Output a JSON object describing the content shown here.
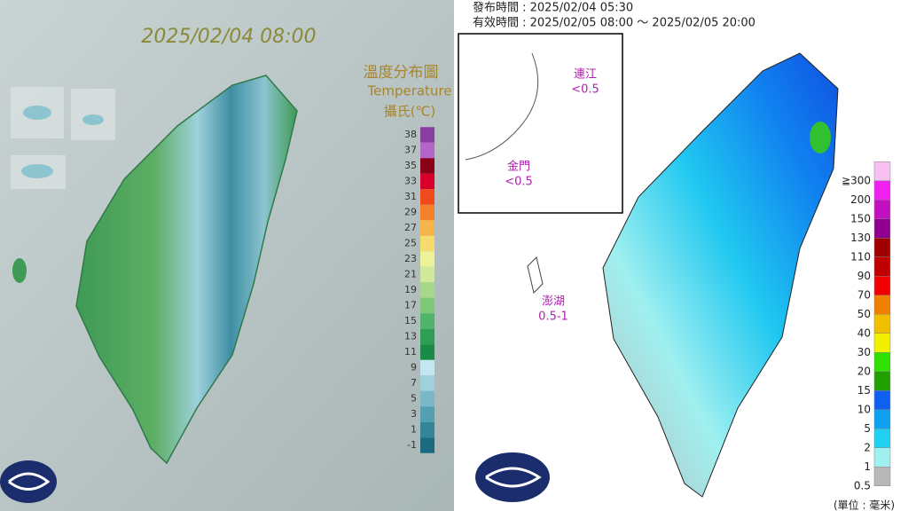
{
  "left_panel": {
    "timestamp": "2025/02/04 08:00",
    "legend_title": "溫度分布圖",
    "legend_subtitle": "Temperature",
    "legend_unit": "攝氏(℃)",
    "legend": [
      {
        "label": "38",
        "color": "#8a3ea0"
      },
      {
        "label": "37",
        "color": "#b565c8"
      },
      {
        "label": "35",
        "color": "#8a0018"
      },
      {
        "label": "33",
        "color": "#d8002a"
      },
      {
        "label": "31",
        "color": "#f04a1c"
      },
      {
        "label": "29",
        "color": "#f5822a"
      },
      {
        "label": "27",
        "color": "#f6b44a"
      },
      {
        "label": "25",
        "color": "#f6dc6c"
      },
      {
        "label": "23",
        "color": "#eef29a"
      },
      {
        "label": "21",
        "color": "#cfe89a"
      },
      {
        "label": "19",
        "color": "#a7d88a"
      },
      {
        "label": "17",
        "color": "#7fc878"
      },
      {
        "label": "15",
        "color": "#52b46a"
      },
      {
        "label": "13",
        "color": "#2f9e55"
      },
      {
        "label": "11",
        "color": "#1b8a46"
      },
      {
        "label": "9",
        "color": "#c4e6ee"
      },
      {
        "label": "7",
        "color": "#9fd0dc"
      },
      {
        "label": "5",
        "color": "#7ab8c8"
      },
      {
        "label": "3",
        "color": "#559fb2"
      },
      {
        "label": "1",
        "color": "#34849a"
      },
      {
        "label": "-1",
        "color": "#1c6a80"
      }
    ]
  },
  "right_panel": {
    "issued": "發布時間 : 2025/02/04 05:30",
    "valid": "有效時間 : 2025/02/05 08:00 ～ 2025/02/05 20:00",
    "islands": [
      {
        "name": "連江",
        "value": "<0.5"
      },
      {
        "name": "金門",
        "value": "<0.5"
      },
      {
        "name": "澎湖",
        "value": "0.5-1"
      }
    ],
    "legend": [
      {
        "label": "≧300",
        "color": "#f8c0f0"
      },
      {
        "label": "200",
        "color": "#f020f0"
      },
      {
        "label": "150",
        "color": "#c010c0"
      },
      {
        "label": "130",
        "color": "#900090"
      },
      {
        "label": "110",
        "color": "#a00000"
      },
      {
        "label": "90",
        "color": "#c00000"
      },
      {
        "label": "70",
        "color": "#f00000"
      },
      {
        "label": "50",
        "color": "#f08000"
      },
      {
        "label": "40",
        "color": "#f0c000"
      },
      {
        "label": "30",
        "color": "#f0f000"
      },
      {
        "label": "20",
        "color": "#30e000"
      },
      {
        "label": "15",
        "color": "#20a000"
      },
      {
        "label": "10",
        "color": "#1060f0"
      },
      {
        "label": "5",
        "color": "#10a0f0"
      },
      {
        "label": "2",
        "color": "#20d0f0"
      },
      {
        "label": "1",
        "color": "#a0f0f0"
      },
      {
        "label": "0.5",
        "color": "#b8b8b8"
      }
    ],
    "unit": "(單位 : 毫米)"
  }
}
